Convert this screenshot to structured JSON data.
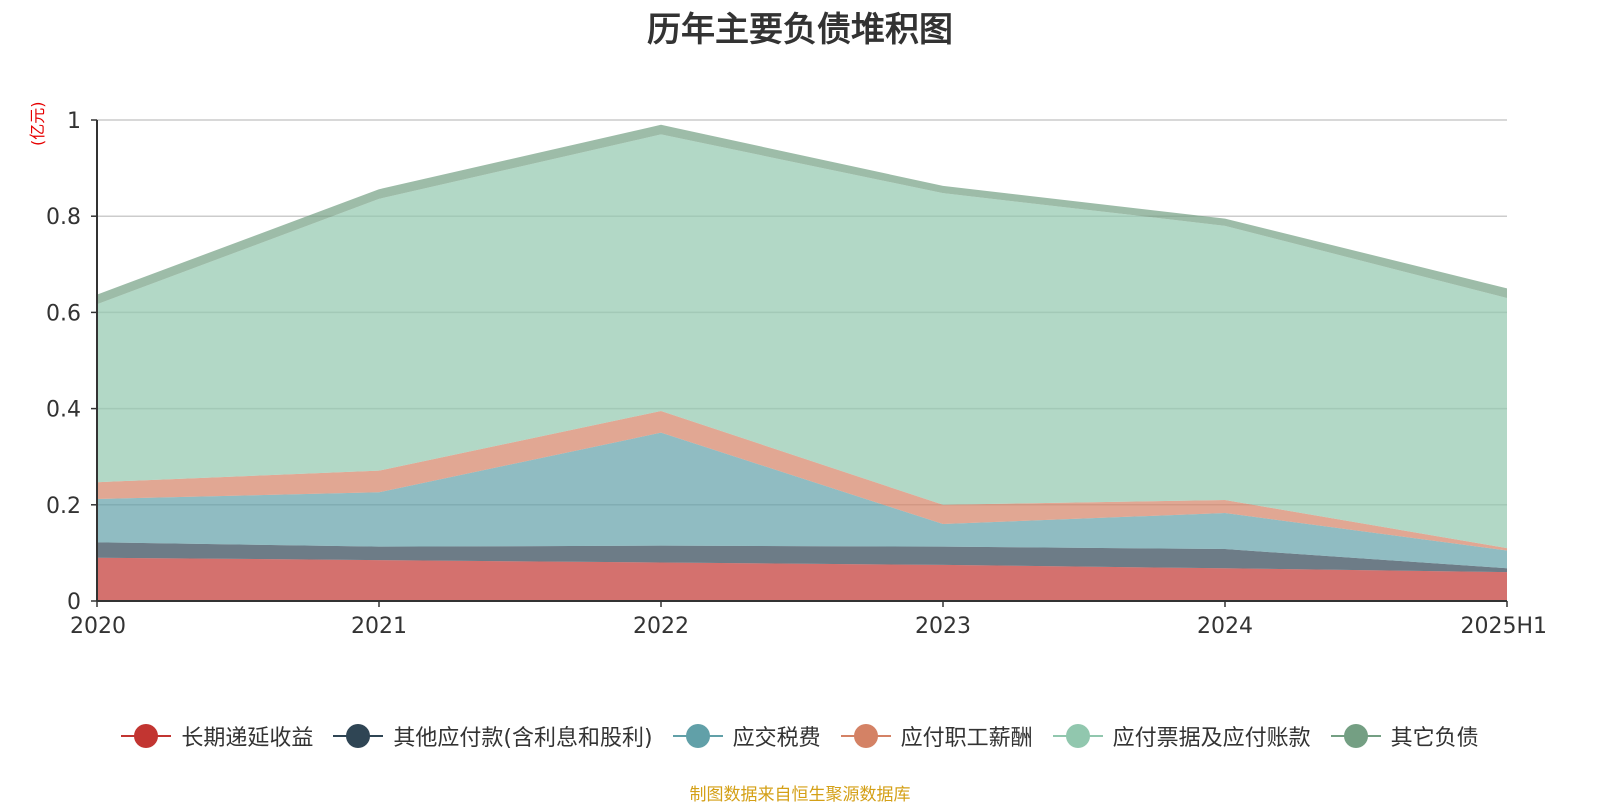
{
  "chart_data": {
    "type": "area",
    "stacked": true,
    "title": "历年主要负债堆积图",
    "unit_label": "(亿元)",
    "categories": [
      "2020",
      "2021",
      "2022",
      "2023",
      "2024",
      "2025H1"
    ],
    "ylim": [
      0,
      1
    ],
    "yticks": [
      "0",
      "0.2",
      "0.4",
      "0.6",
      "0.8",
      "1"
    ],
    "grid": true,
    "legend_position": "bottom",
    "series": [
      {
        "name": "长期递延收益",
        "color": "#c23531",
        "values": [
          0.09,
          0.085,
          0.08,
          0.075,
          0.068,
          0.06
        ]
      },
      {
        "name": "其他应付款(含利息和股利)",
        "color": "#2f4554",
        "values": [
          0.032,
          0.028,
          0.035,
          0.038,
          0.04,
          0.008
        ]
      },
      {
        "name": "应交税费",
        "color": "#61a0a8",
        "values": [
          0.09,
          0.113,
          0.235,
          0.047,
          0.075,
          0.037
        ]
      },
      {
        "name": "应付职工薪酬",
        "color": "#d48265",
        "values": [
          0.035,
          0.045,
          0.045,
          0.04,
          0.027,
          0.005
        ]
      },
      {
        "name": "应付票据及应付账款",
        "color": "#91c7ae",
        "values": [
          0.37,
          0.565,
          0.575,
          0.648,
          0.57,
          0.52
        ]
      },
      {
        "name": "其它负债",
        "color": "#749f83",
        "values": [
          0.02,
          0.02,
          0.02,
          0.015,
          0.015,
          0.02
        ]
      }
    ]
  },
  "source_note": "制图数据来自恒生聚源数据库"
}
